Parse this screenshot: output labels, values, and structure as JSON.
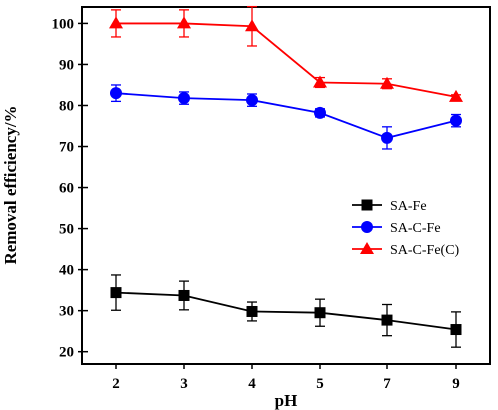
{
  "chart_data": {
    "type": "line",
    "title": "",
    "xlabel": "pH",
    "ylabel": "Removal efficiency/%",
    "categories": [
      "2",
      "3",
      "4",
      "5",
      "7",
      "9"
    ],
    "ylim": [
      17,
      104
    ],
    "yticks": [
      20,
      30,
      40,
      50,
      60,
      70,
      80,
      90,
      100
    ],
    "grid": false,
    "legend_position": "center-right",
    "series": [
      {
        "name": "SA-Fe",
        "color": "#000000",
        "marker": "square",
        "values": [
          34.4,
          33.7,
          29.8,
          29.5,
          27.7,
          25.4
        ],
        "errors": [
          4.3,
          3.5,
          2.3,
          3.3,
          3.8,
          4.3
        ]
      },
      {
        "name": "SA-C-Fe",
        "color": "#0000ff",
        "marker": "circle",
        "values": [
          83.0,
          81.8,
          81.3,
          78.2,
          72.1,
          76.3
        ],
        "errors": [
          2.0,
          1.5,
          1.5,
          1.0,
          2.7,
          1.5
        ]
      },
      {
        "name": "SA-C-Fe(C)",
        "color": "#ff0000",
        "marker": "triangle",
        "values": [
          100.0,
          100.0,
          99.3,
          85.6,
          85.3,
          82.1
        ],
        "errors": [
          3.3,
          3.3,
          4.8,
          1.2,
          1.2,
          0.5
        ]
      }
    ]
  }
}
